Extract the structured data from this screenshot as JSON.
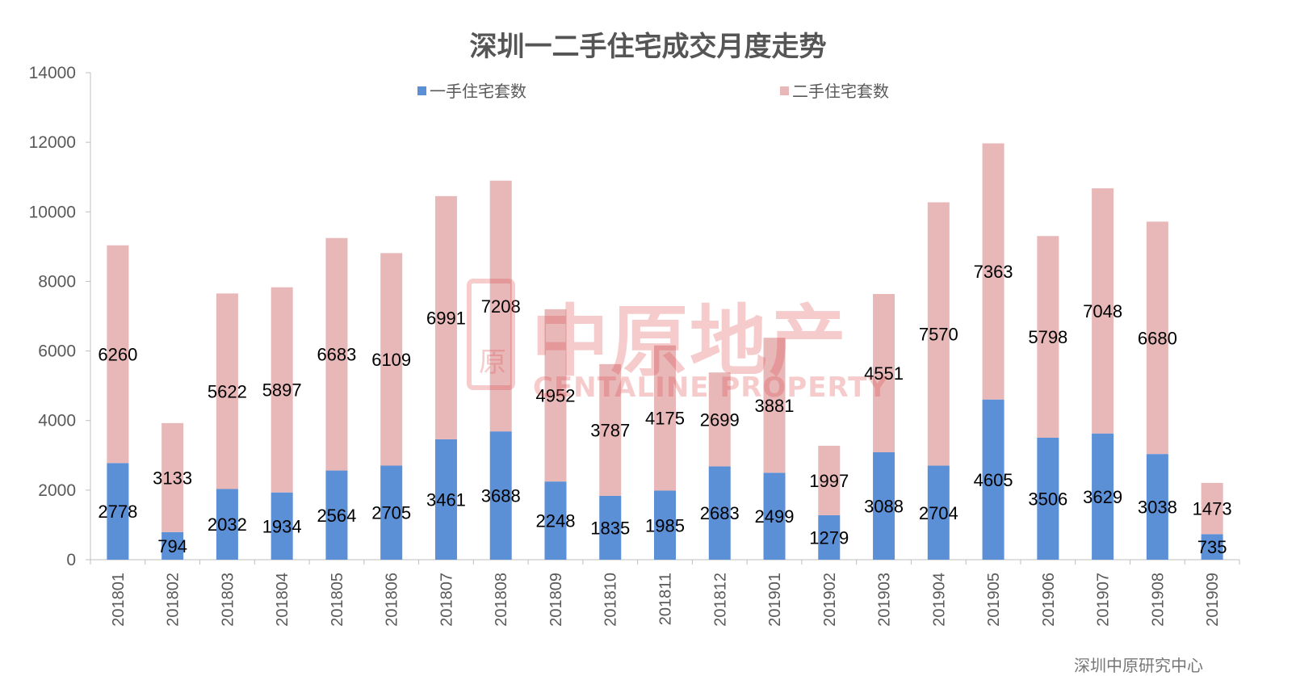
{
  "title": "深圳一二手住宅成交月度走势",
  "source": "深圳中原研究中心",
  "watermark": {
    "cn": "中原地产",
    "en": "CENTALINE PROPERTY",
    "logo_char": "原"
  },
  "colors": {
    "new_homes": "#5b8fd6",
    "second_hand": "#e8b8b8",
    "axis": "#bfbfbf",
    "tick_text": "#595959",
    "label_text": "#000000"
  },
  "chart_data": {
    "type": "bar",
    "stacked": true,
    "title": "深圳一二手住宅成交月度走势",
    "xlabel": "",
    "ylabel": "",
    "ylim": [
      0,
      14000
    ],
    "yticks": [
      0,
      2000,
      4000,
      6000,
      8000,
      10000,
      12000,
      14000
    ],
    "grid": false,
    "legend_position": "top",
    "categories": [
      "201801",
      "201802",
      "201803",
      "201804",
      "201805",
      "201806",
      "201807",
      "201808",
      "201809",
      "201810",
      "201811",
      "201812",
      "201901",
      "201902",
      "201903",
      "201904",
      "201905",
      "201906",
      "201907",
      "201908",
      "201909"
    ],
    "series": [
      {
        "name": "一手住宅套数",
        "color": "#5b8fd6",
        "values": [
          2778,
          794,
          2032,
          1934,
          2564,
          2705,
          3461,
          3688,
          2248,
          1835,
          1985,
          2683,
          2499,
          1279,
          3088,
          2704,
          4605,
          3506,
          3629,
          3038,
          735
        ]
      },
      {
        "name": "二手住宅套数",
        "color": "#e8b8b8",
        "values": [
          6260,
          3133,
          5622,
          5897,
          6683,
          6109,
          6991,
          7208,
          4952,
          3787,
          4175,
          2699,
          3881,
          1997,
          4551,
          7570,
          7363,
          5798,
          7048,
          6680,
          1473
        ]
      }
    ]
  }
}
